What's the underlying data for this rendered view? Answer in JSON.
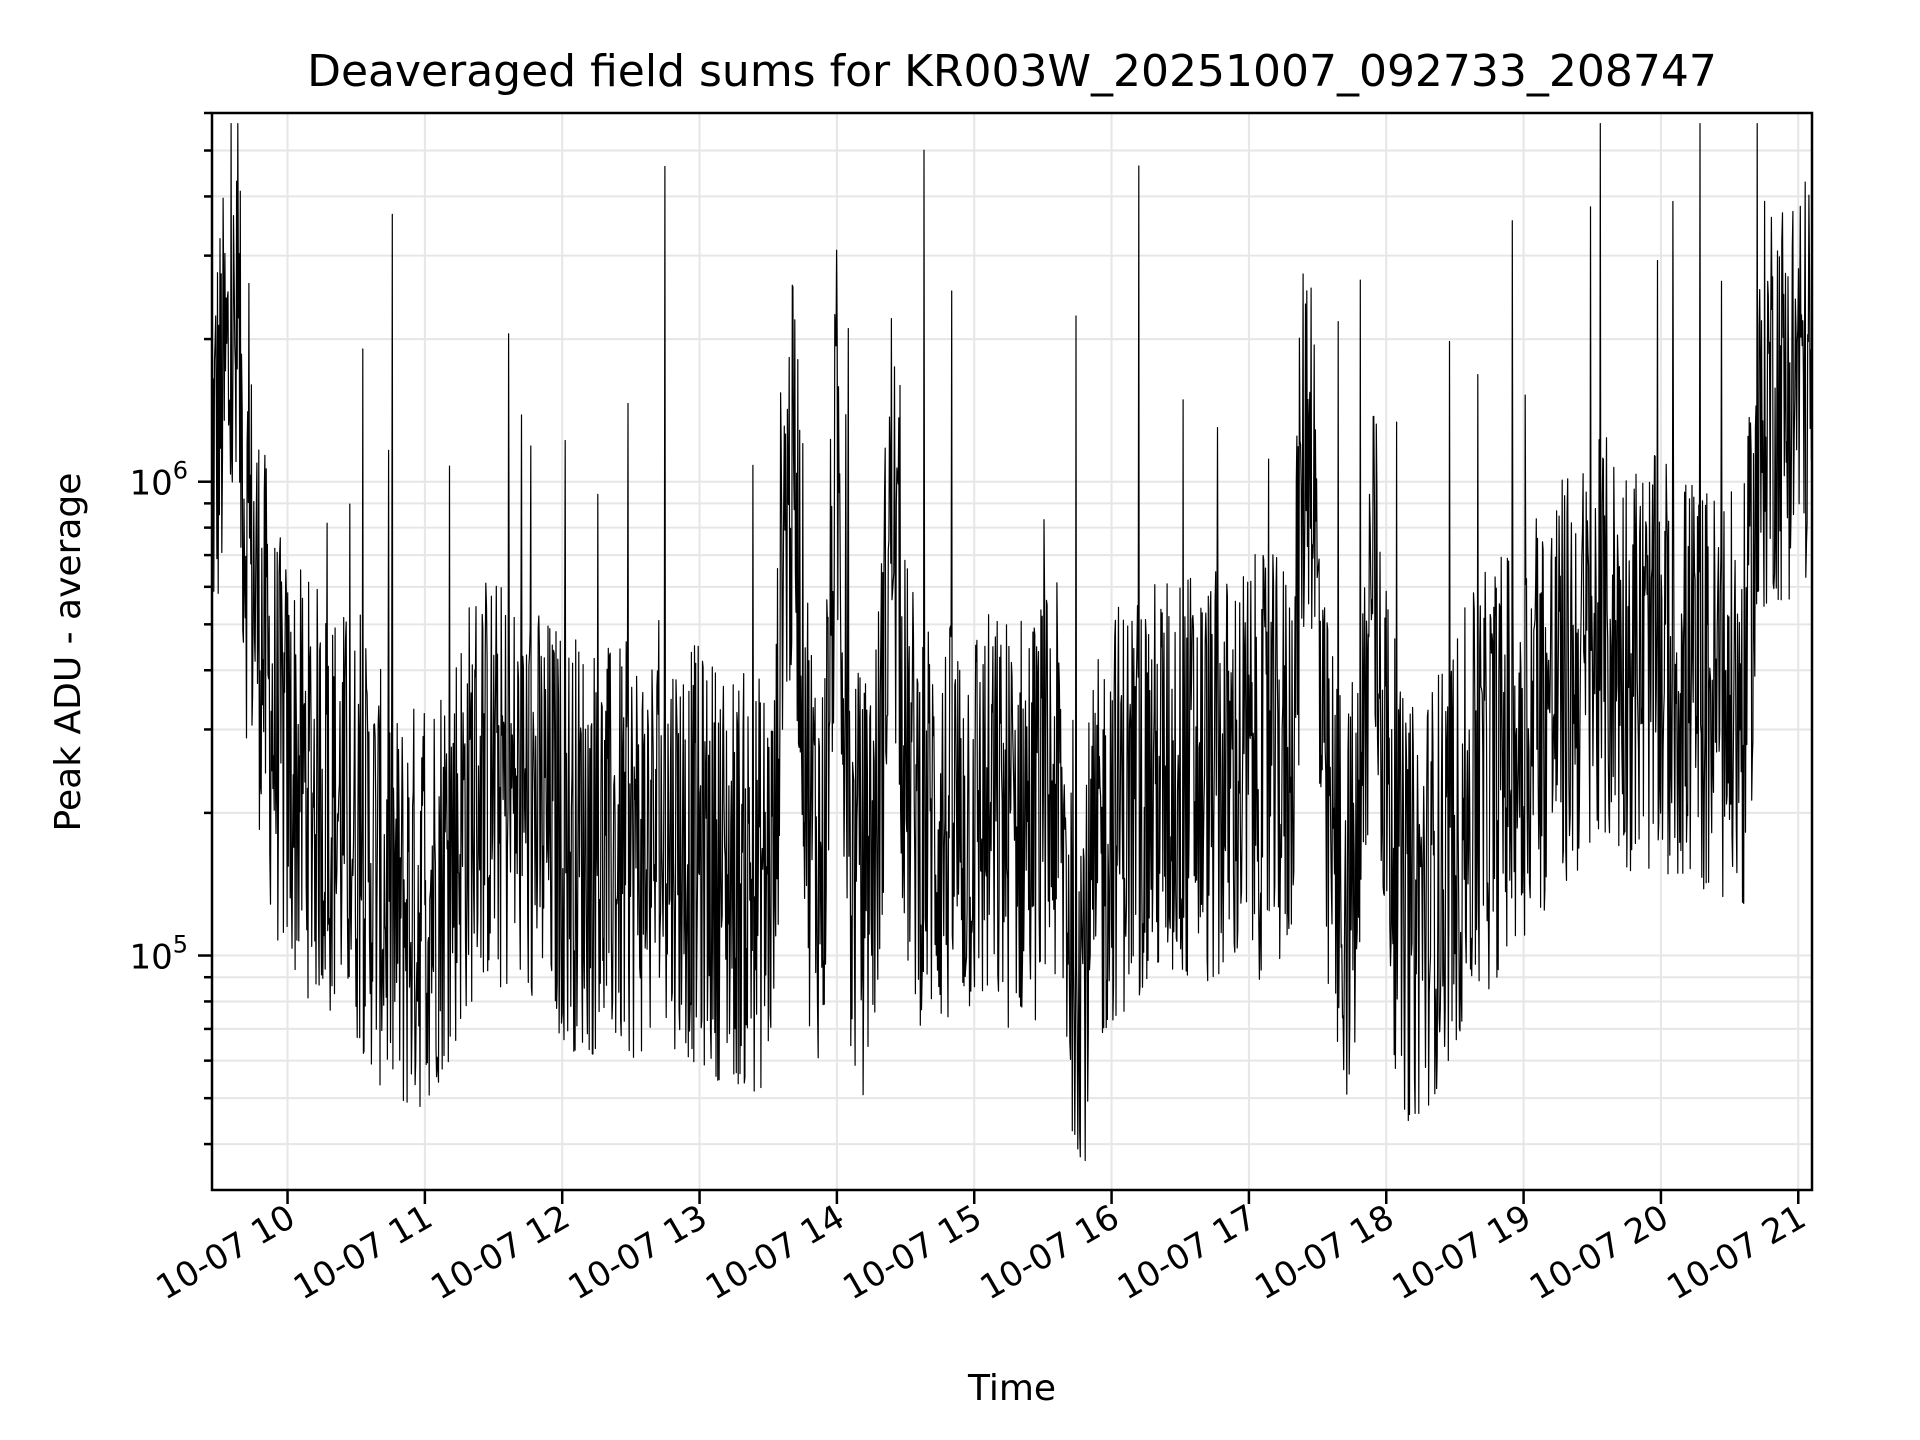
{
  "chart_data": {
    "type": "line",
    "title": "Deaveraged field sums for KR003W_20251007_092733_208747",
    "xlabel": "Time",
    "ylabel": "Peak ADU - average",
    "yscale": "log",
    "ylim": [
      32000,
      6000000
    ],
    "xlim_hours": [
      9.45,
      21.1
    ],
    "x_ticks": [
      {
        "hour": 10,
        "label": "10-07 10"
      },
      {
        "hour": 11,
        "label": "10-07 11"
      },
      {
        "hour": 12,
        "label": "10-07 12"
      },
      {
        "hour": 13,
        "label": "10-07 13"
      },
      {
        "hour": 14,
        "label": "10-07 14"
      },
      {
        "hour": 15,
        "label": "10-07 15"
      },
      {
        "hour": 16,
        "label": "10-07 16"
      },
      {
        "hour": 17,
        "label": "10-07 17"
      },
      {
        "hour": 18,
        "label": "10-07 18"
      },
      {
        "hour": 19,
        "label": "10-07 19"
      },
      {
        "hour": 20,
        "label": "10-07 20"
      },
      {
        "hour": 21,
        "label": "10-07 21"
      }
    ],
    "y_ticks": [
      {
        "value": 100000,
        "base": "10",
        "exp": "5"
      },
      {
        "value": 1000000,
        "base": "10",
        "exp": "6"
      }
    ],
    "grid": true,
    "line_color": "#000000",
    "series": [
      {
        "name": "field sums",
        "x": [
          9.45,
          9.55,
          9.6,
          9.65,
          9.7,
          9.8,
          9.9,
          10.0,
          10.2,
          10.4,
          10.6,
          10.8,
          11.0,
          11.2,
          11.4,
          11.6,
          11.8,
          12.0,
          12.2,
          12.4,
          12.6,
          12.8,
          13.0,
          13.2,
          13.4,
          13.55,
          13.6,
          13.7,
          13.8,
          13.9,
          14.0,
          14.1,
          14.2,
          14.3,
          14.4,
          14.5,
          14.6,
          14.8,
          15.0,
          15.2,
          15.4,
          15.6,
          15.7,
          15.8,
          15.9,
          16.0,
          16.2,
          16.4,
          16.6,
          16.8,
          17.0,
          17.3,
          17.4,
          17.45,
          17.55,
          17.65,
          17.7,
          17.8,
          17.9,
          18.0,
          18.1,
          18.2,
          18.4,
          18.6,
          18.8,
          19.0,
          19.2,
          19.4,
          19.6,
          19.8,
          20.0,
          20.2,
          20.4,
          20.6,
          20.75,
          20.8,
          20.9,
          21.0,
          21.1
        ],
        "y": [
          1100000,
          1600000,
          1800000,
          1600000,
          800000,
          500000,
          300000,
          250000,
          220000,
          200000,
          160000,
          120000,
          130000,
          170000,
          240000,
          220000,
          200000,
          180000,
          170000,
          160000,
          170000,
          180000,
          160000,
          150000,
          140000,
          150000,
          800000,
          1000000,
          200000,
          150000,
          1200000,
          150000,
          140000,
          200000,
          1000000,
          250000,
          200000,
          180000,
          200000,
          190000,
          200000,
          220000,
          120000,
          100000,
          150000,
          200000,
          220000,
          230000,
          240000,
          230000,
          250000,
          250000,
          1200000,
          1500000,
          200000,
          150000,
          130000,
          150000,
          700000,
          250000,
          130000,
          120000,
          150000,
          200000,
          250000,
          300000,
          350000,
          400000,
          450000,
          420000,
          400000,
          380000,
          350000,
          330000,
          1400000,
          1600000,
          1500000,
          1700000,
          1600000
        ]
      }
    ]
  }
}
